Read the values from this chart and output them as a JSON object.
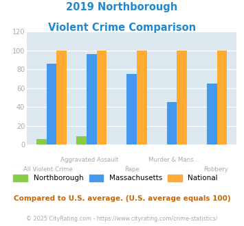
{
  "title_line1": "2019 Northborough",
  "title_line2": "Violent Crime Comparison",
  "categories": [
    "All Violent Crime",
    "Aggravated Assault",
    "Rape",
    "Murder & Mans...",
    "Robbery"
  ],
  "cat_top": [
    "",
    "Aggravated Assault",
    "",
    "Murder & Mans...",
    ""
  ],
  "cat_bot": [
    "All Violent Crime",
    "",
    "Rape",
    "",
    "Robbery"
  ],
  "northborough": [
    6,
    9,
    0,
    0,
    0
  ],
  "massachusetts": [
    86,
    96,
    75,
    45,
    65
  ],
  "national": [
    100,
    100,
    100,
    100,
    100
  ],
  "color_northborough": "#88cc44",
  "color_massachusetts": "#4499ee",
  "color_national": "#ffaa33",
  "ylim": [
    0,
    120
  ],
  "yticks": [
    0,
    20,
    40,
    60,
    80,
    100,
    120
  ],
  "footnote": "Compared to U.S. average. (U.S. average equals 100)",
  "copyright": "© 2025 CityRating.com - https://www.cityrating.com/crime-statistics/",
  "title_color": "#2288cc",
  "tick_label_color": "#aaaaaa",
  "bg_color": "#dce8f0",
  "bar_width": 0.25
}
